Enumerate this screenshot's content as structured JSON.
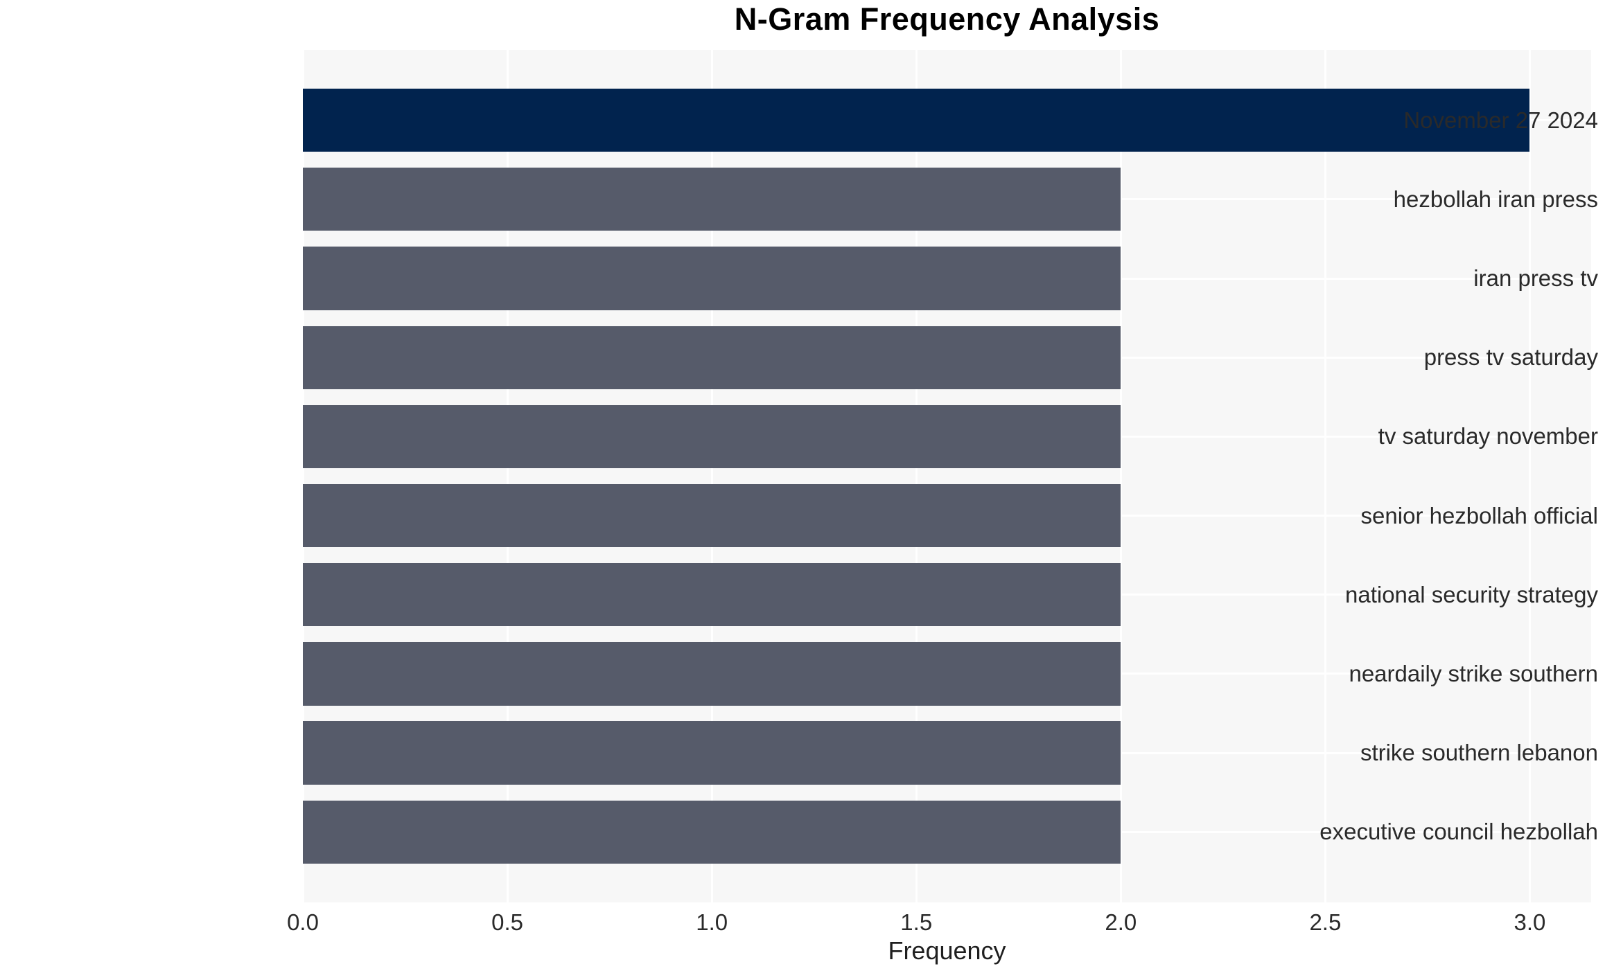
{
  "chart_data": {
    "type": "bar",
    "orientation": "horizontal",
    "title": "N-Gram Frequency Analysis",
    "xlabel": "Frequency",
    "ylabel": "",
    "categories": [
      "November 27 2024",
      "hezbollah iran press",
      "iran press tv",
      "press tv saturday",
      "tv saturday november",
      "senior hezbollah official",
      "national security strategy",
      "neardaily strike southern",
      "strike southern lebanon",
      "executive council hezbollah"
    ],
    "values": [
      3,
      2,
      2,
      2,
      2,
      2,
      2,
      2,
      2,
      2
    ],
    "highlight_index": 0,
    "xlim": [
      0,
      3.15
    ],
    "xticks": [
      0.0,
      0.5,
      1.0,
      1.5,
      2.0,
      2.5,
      3.0
    ],
    "xtick_labels": [
      "0.0",
      "0.5",
      "1.0",
      "1.5",
      "2.0",
      "2.5",
      "3.0"
    ],
    "grid": true,
    "legend": false,
    "style": {
      "highlight_bar_color": "#01234e",
      "bar_color": "#565b6a",
      "plot_background": "#f7f7f7",
      "grid_color": "#ffffff",
      "tick_text_color": "#2a2a2a",
      "title_color": "#000000"
    }
  }
}
